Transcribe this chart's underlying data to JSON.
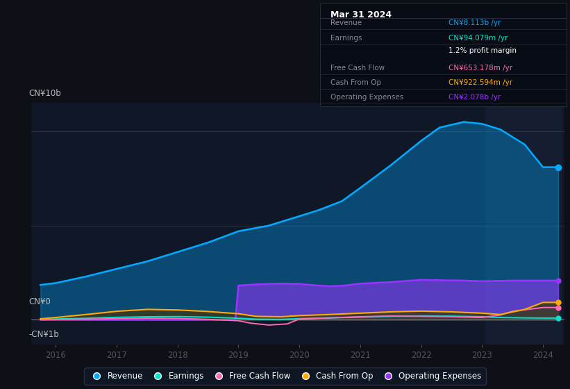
{
  "background_color": "#0d1117",
  "plot_bg_color": "#101828",
  "highlight_bg": "#141e30",
  "colors": {
    "revenue": "#00aaff",
    "earnings": "#00e5cc",
    "free_cash_flow": "#ff69b4",
    "cash_from_op": "#ffaa00",
    "operating_expenses": "#9933ff"
  },
  "ylabel_top": "CN¥10b",
  "ylabel_bottom": "-CN¥1b",
  "ylabel_zero": "CN¥0",
  "x_ticks": [
    2016,
    2017,
    2018,
    2019,
    2020,
    2021,
    2022,
    2023,
    2024
  ],
  "tooltip": {
    "date": "Mar 31 2024",
    "rows": [
      {
        "label": "Revenue",
        "value": "CN¥8.113b /yr",
        "value_color": "#00aaff",
        "sub": null
      },
      {
        "label": "Earnings",
        "value": "CN¥94.079m /yr",
        "value_color": "#00e5cc",
        "sub": "1.2% profit margin"
      },
      {
        "label": "Free Cash Flow",
        "value": "CN¥653.178m /yr",
        "value_color": "#ff69b4",
        "sub": null
      },
      {
        "label": "Cash From Op",
        "value": "CN¥922.594m /yr",
        "value_color": "#ffaa00",
        "sub": null
      },
      {
        "label": "Operating Expenses",
        "value": "CN¥2.078b /yr",
        "value_color": "#9933ff",
        "sub": null
      }
    ]
  },
  "legend": [
    {
      "label": "Revenue",
      "color": "#00aaff"
    },
    {
      "label": "Earnings",
      "color": "#00e5cc"
    },
    {
      "label": "Free Cash Flow",
      "color": "#ff69b4"
    },
    {
      "label": "Cash From Op",
      "color": "#ffaa00"
    },
    {
      "label": "Operating Expenses",
      "color": "#9933ff"
    }
  ],
  "rev_x": [
    2015.75,
    2016,
    2016.5,
    2017,
    2017.5,
    2018,
    2018.5,
    2019,
    2019.5,
    2020,
    2020.3,
    2020.7,
    2021,
    2021.5,
    2022,
    2022.3,
    2022.7,
    2023,
    2023.3,
    2023.7,
    2024,
    2024.25
  ],
  "rev_y": [
    1.85,
    1.95,
    2.3,
    2.7,
    3.1,
    3.6,
    4.1,
    4.7,
    5.0,
    5.5,
    5.8,
    6.3,
    7.0,
    8.2,
    9.5,
    10.2,
    10.5,
    10.4,
    10.1,
    9.3,
    8.1,
    8.1
  ],
  "earn_x": [
    2015.75,
    2016,
    2016.5,
    2017,
    2017.5,
    2018,
    2018.5,
    2019,
    2019.3,
    2019.7,
    2020,
    2020.5,
    2021,
    2021.5,
    2022,
    2022.5,
    2023,
    2023.3,
    2023.7,
    2024,
    2024.25
  ],
  "earn_y": [
    0.02,
    0.04,
    0.08,
    0.13,
    0.16,
    0.17,
    0.14,
    0.08,
    0.03,
    0.02,
    0.06,
    0.1,
    0.14,
    0.18,
    0.2,
    0.19,
    0.16,
    0.12,
    0.1,
    0.09,
    0.09
  ],
  "fcf_x": [
    2015.75,
    2016,
    2016.5,
    2017,
    2017.5,
    2018,
    2018.5,
    2019,
    2019.2,
    2019.5,
    2019.8,
    2020,
    2020.5,
    2021,
    2021.5,
    2022,
    2022.5,
    2023,
    2023.3,
    2023.5,
    2024,
    2024.25
  ],
  "fcf_y": [
    0.0,
    0.01,
    0.03,
    0.06,
    0.08,
    0.07,
    0.02,
    -0.05,
    -0.18,
    -0.28,
    -0.22,
    0.04,
    0.1,
    0.16,
    0.2,
    0.18,
    0.16,
    0.12,
    0.25,
    0.45,
    0.65,
    0.65
  ],
  "cfo_x": [
    2015.75,
    2016,
    2016.5,
    2017,
    2017.5,
    2018,
    2018.5,
    2019,
    2019.3,
    2019.7,
    2020,
    2020.5,
    2021,
    2021.5,
    2022,
    2022.5,
    2023,
    2023.3,
    2023.7,
    2024,
    2024.25
  ],
  "cfo_y": [
    0.05,
    0.12,
    0.28,
    0.45,
    0.55,
    0.52,
    0.44,
    0.32,
    0.18,
    0.16,
    0.22,
    0.28,
    0.35,
    0.42,
    0.46,
    0.42,
    0.35,
    0.28,
    0.55,
    0.92,
    0.92
  ],
  "opex_x": [
    2015.75,
    2018.95,
    2019.0,
    2019.3,
    2019.7,
    2020,
    2020.3,
    2020.5,
    2020.7,
    2021,
    2021.5,
    2022,
    2022.3,
    2022.7,
    2023,
    2023.5,
    2024,
    2024.25
  ],
  "opex_y": [
    0.0,
    0.0,
    1.82,
    1.88,
    1.92,
    1.9,
    1.82,
    1.78,
    1.8,
    1.92,
    2.0,
    2.12,
    2.1,
    2.08,
    2.05,
    2.08,
    2.08,
    2.08
  ]
}
